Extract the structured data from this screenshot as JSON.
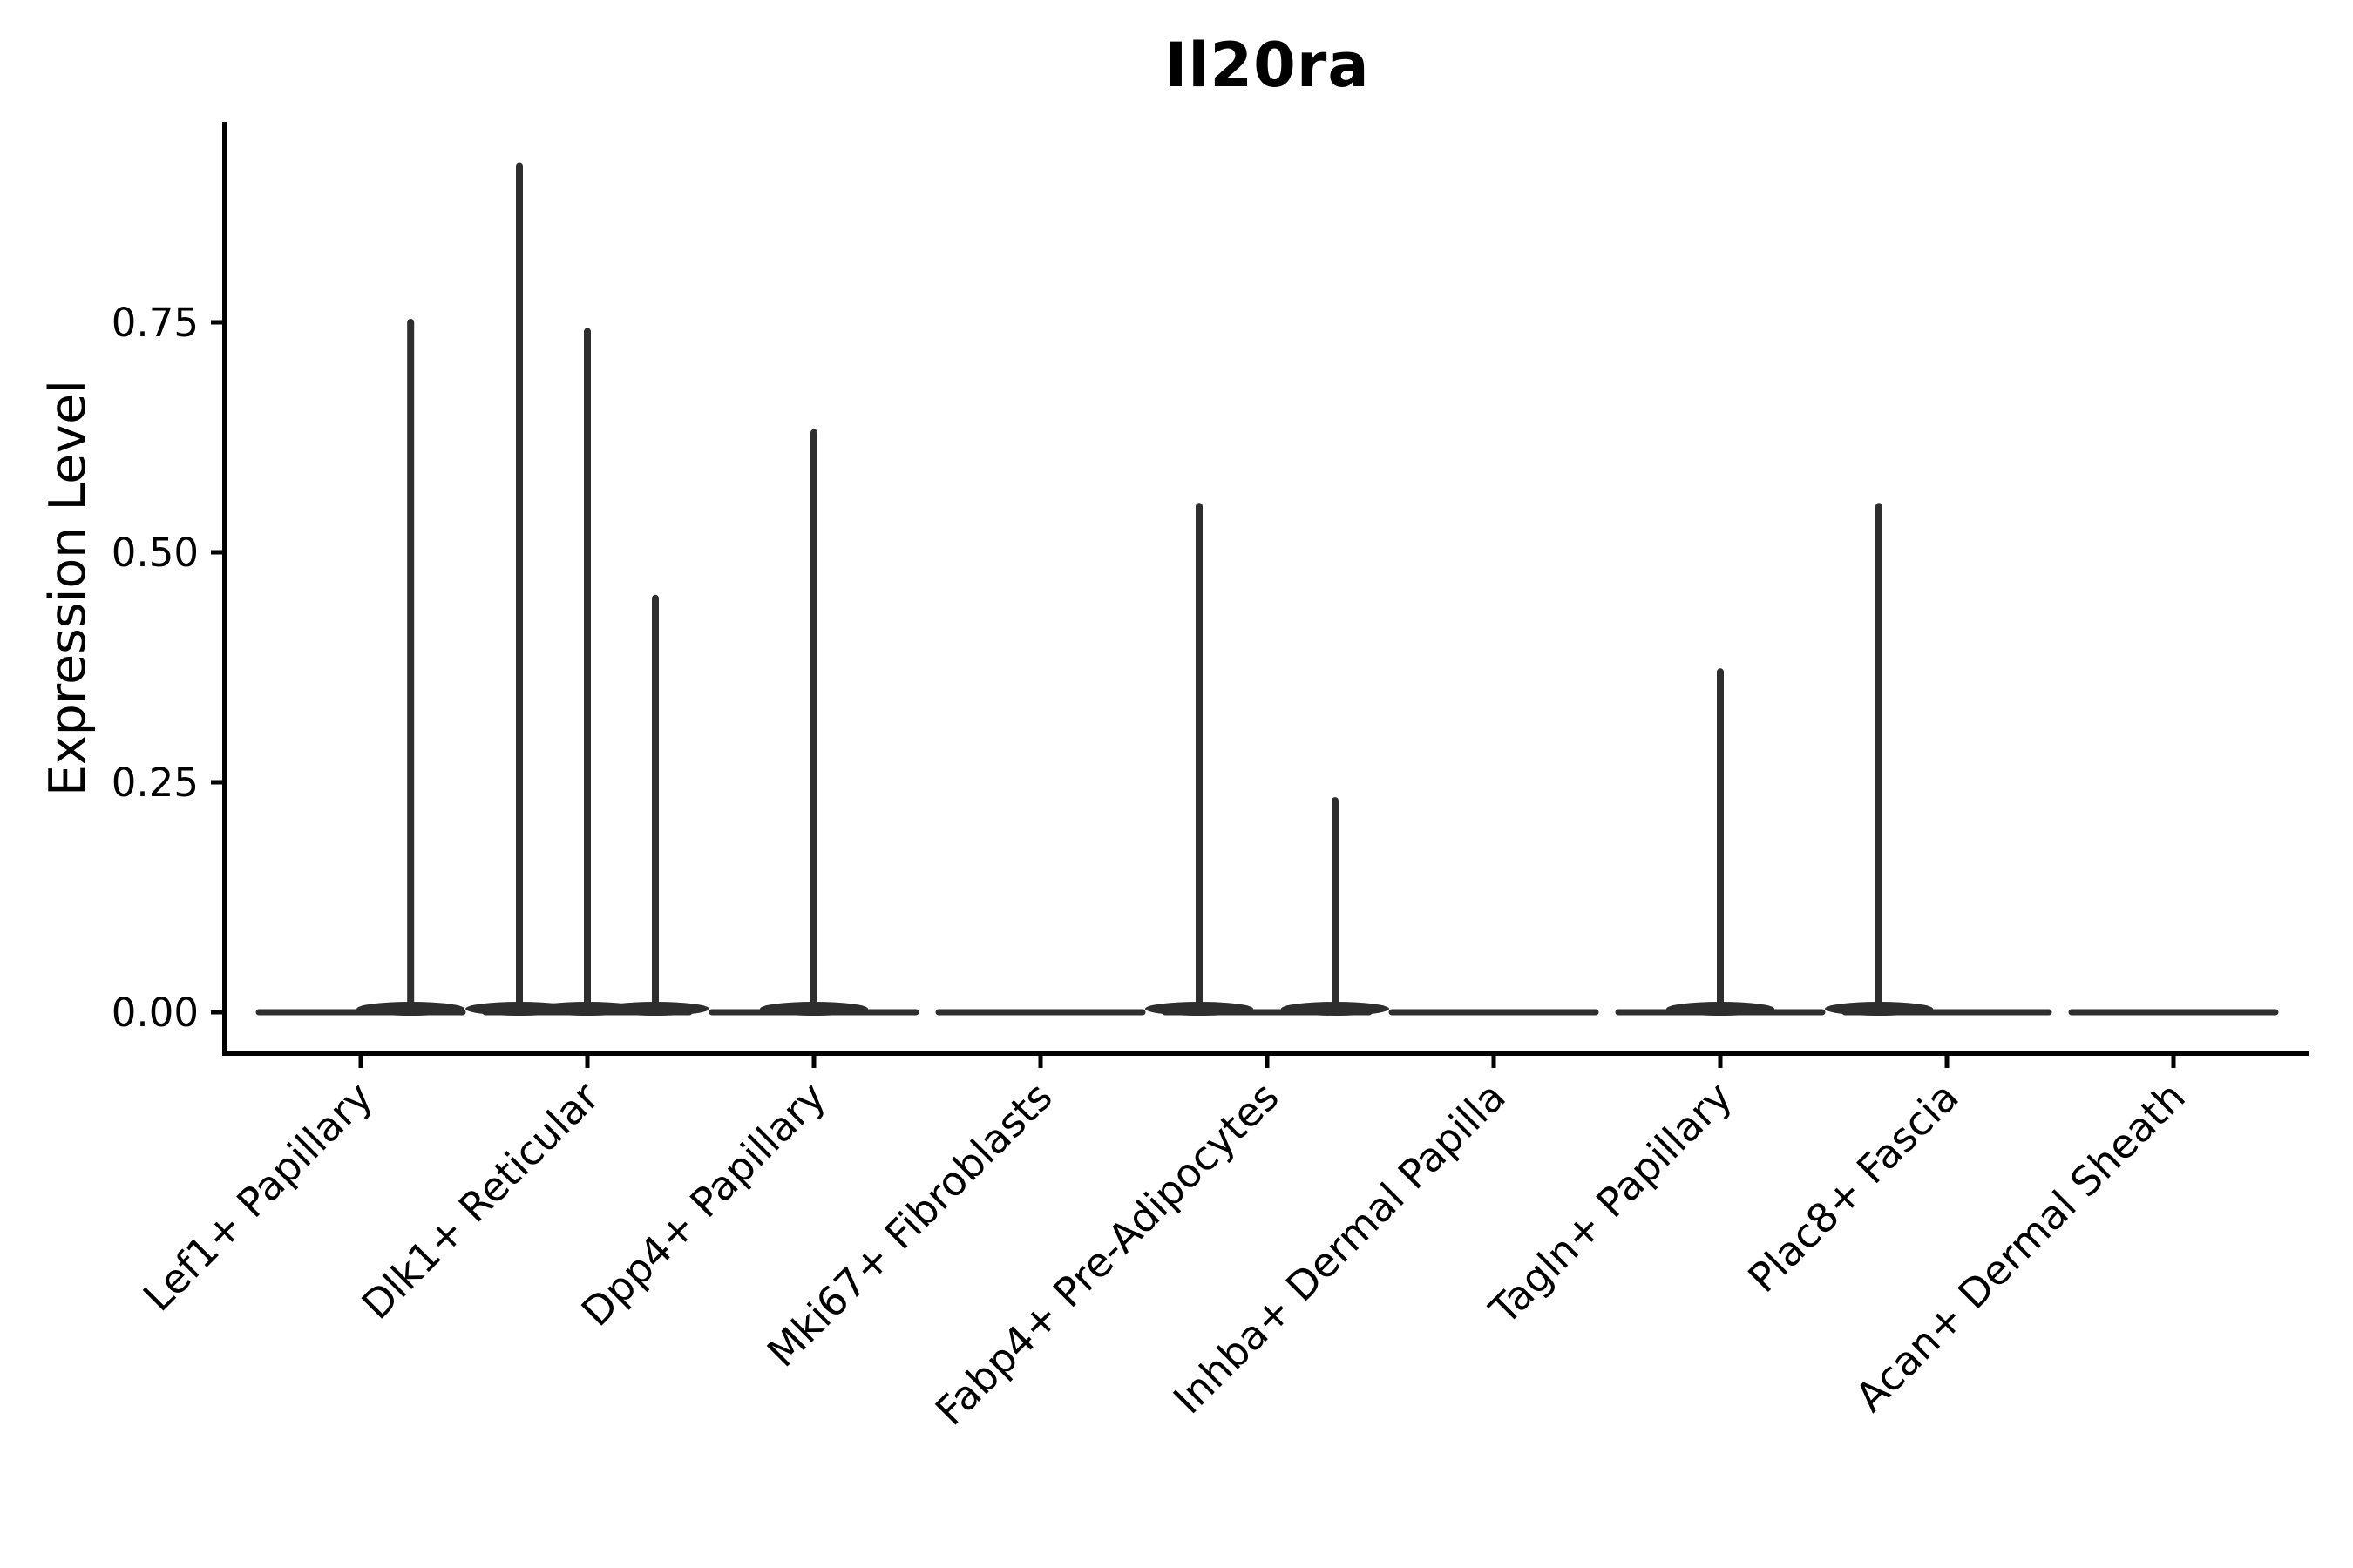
{
  "title": "Il20ra",
  "y_axis": {
    "label": "Expression Level",
    "tick_labels": [
      "0.00",
      "0.25",
      "0.50",
      "0.75"
    ],
    "tick_values": [
      0.0,
      0.25,
      0.5,
      0.75
    ]
  },
  "x_axis": {
    "categories": [
      "Lef1+ Papillary",
      "Dlk1+ Reticular",
      "Dpp4+ Papillary",
      "Mki67+ Fibroblasts",
      "Fabp4+ Pre-Adipocytes",
      "Inhba+ Dermal Papilla",
      "Tagln+ Papillary",
      "Plac8+ Fascia",
      "Acan+ Dermal Sheath"
    ]
  },
  "chart_data": {
    "type": "violin",
    "title": "Il20ra",
    "xlabel": "",
    "ylabel": "Expression Level",
    "ylim": [
      -0.04,
      0.97
    ],
    "yticks": [
      0.0,
      0.25,
      0.5,
      0.75
    ],
    "ytick_labels": [
      "0.00",
      "0.25",
      "0.50",
      "0.75"
    ],
    "grid": false,
    "legend": "none",
    "x_label_rotation_deg": 45,
    "categories": [
      "Lef1+ Papillary",
      "Dlk1+ Reticular",
      "Dpp4+ Papillary",
      "Mki67+ Fibroblasts",
      "Fabp4+ Pre-Adipocytes",
      "Inhba+ Dermal Papilla",
      "Tagln+ Papillary",
      "Plac8+ Fascia",
      "Acan+ Dermal Sheath"
    ],
    "violin_halfwidth_units": 0.45,
    "violins": [
      {
        "category": "Lef1+ Papillary",
        "baseline_value": 0.0,
        "spikes": [
          {
            "offset_units": 0.22,
            "max_value": 0.75
          }
        ]
      },
      {
        "category": "Dlk1+ Reticular",
        "baseline_value": 0.0,
        "spikes": [
          {
            "offset_units": -0.3,
            "max_value": 0.92
          },
          {
            "offset_units": 0.0,
            "max_value": 0.74
          },
          {
            "offset_units": 0.3,
            "max_value": 0.45
          }
        ]
      },
      {
        "category": "Dpp4+ Papillary",
        "baseline_value": 0.0,
        "spikes": [
          {
            "offset_units": 0.0,
            "max_value": 0.63
          }
        ]
      },
      {
        "category": "Mki67+ Fibroblasts",
        "baseline_value": 0.0,
        "spikes": []
      },
      {
        "category": "Fabp4+ Pre-Adipocytes",
        "baseline_value": 0.0,
        "spikes": [
          {
            "offset_units": -0.3,
            "max_value": 0.55
          },
          {
            "offset_units": 0.3,
            "max_value": 0.23
          }
        ]
      },
      {
        "category": "Inhba+ Dermal Papilla",
        "baseline_value": 0.0,
        "spikes": []
      },
      {
        "category": "Tagln+ Papillary",
        "baseline_value": 0.0,
        "spikes": [
          {
            "offset_units": 0.0,
            "max_value": 0.37
          }
        ]
      },
      {
        "category": "Plac8+ Fascia",
        "baseline_value": 0.0,
        "spikes": [
          {
            "offset_units": -0.3,
            "max_value": 0.55
          }
        ]
      },
      {
        "category": "Acan+ Dermal Sheath",
        "baseline_value": 0.0,
        "spikes": []
      }
    ]
  },
  "colors": {
    "violin_stroke": "#2e2e2e",
    "axis": "#000000",
    "text": "#000000",
    "background": "#ffffff"
  }
}
